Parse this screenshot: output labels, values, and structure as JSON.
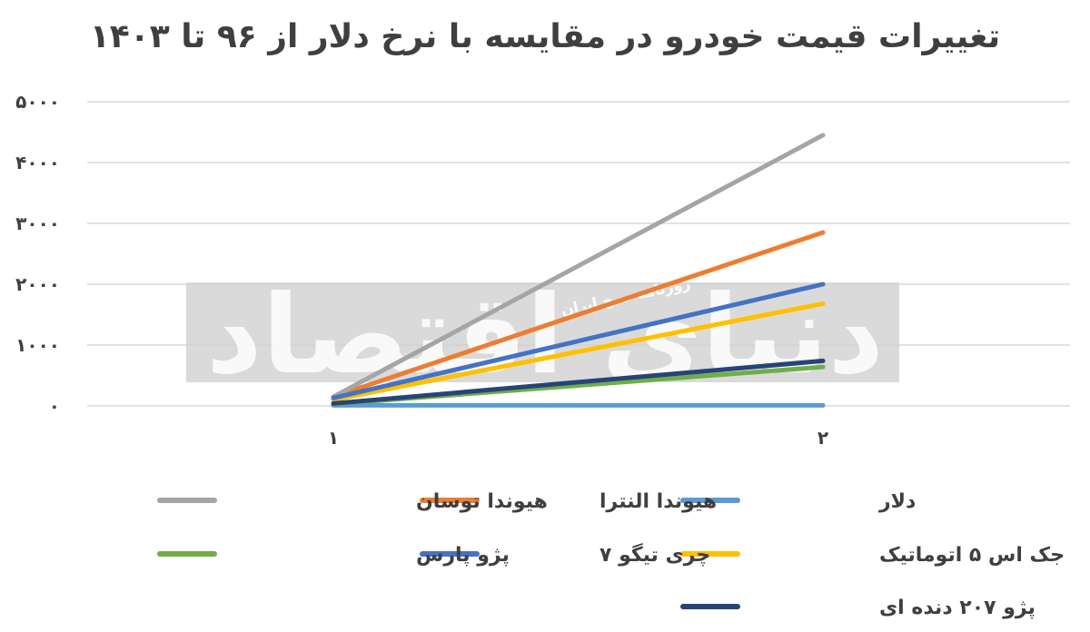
{
  "chart_data": {
    "type": "line",
    "title": "تغییرات قیمت خودرو در مقایسه با نرخ دلار از ۹۶ تا ۱۴۰۳",
    "x": [
      "۱",
      "۲"
    ],
    "y_ticks": [
      "۰",
      "۱۰۰۰",
      "۲۰۰۰",
      "۳۰۰۰",
      "۴۰۰۰",
      "۵۰۰۰"
    ],
    "ylim": [
      0,
      5000
    ],
    "grid": true,
    "legend_position": "bottom",
    "series": [
      {
        "name": "دلار",
        "color": "#5b9bd5",
        "values": [
          10,
          10
        ]
      },
      {
        "name": "هیوندا النترا",
        "color": "#ed7d31",
        "values": [
          150,
          2850
        ]
      },
      {
        "name": "هیوندا توسان",
        "color": "#a5a5a5",
        "values": [
          150,
          4450
        ]
      },
      {
        "name": "جک اس ۵ اتوماتیک",
        "color": "#ffc000",
        "values": [
          100,
          1680
        ]
      },
      {
        "name": "چری تیگو ۷",
        "color": "#4472c4",
        "values": [
          130,
          2000
        ]
      },
      {
        "name": "پژو پارس",
        "color": "#70ad47",
        "values": [
          30,
          640
        ]
      },
      {
        "name": "پژو ۲۰۷ دنده ای",
        "color": "#264478",
        "values": [
          40,
          740
        ]
      }
    ],
    "watermark": {
      "logo_text": "دنیای اقتصاد",
      "sub_text": "روزنامه صبح ایران"
    }
  }
}
